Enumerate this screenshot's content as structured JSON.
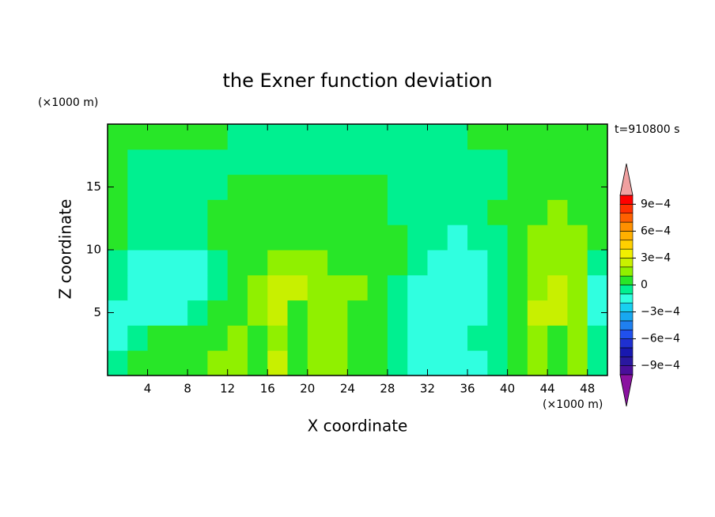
{
  "chart_data": {
    "type": "contour",
    "title": "the Exner function deviation",
    "x_label": "X coordinate",
    "y_label": "Z coordinate",
    "x_unit": "(×1000 m)",
    "y_unit": "(×1000 m)",
    "annotation": "t=910800 s",
    "xlim": [
      0,
      50
    ],
    "ylim": [
      0,
      20
    ],
    "xticks": [
      4,
      8,
      12,
      16,
      20,
      24,
      28,
      32,
      36,
      40,
      44,
      48
    ],
    "yticks": [
      5,
      10,
      15
    ],
    "x": [
      1,
      3,
      5,
      7,
      9,
      11,
      13,
      15,
      17,
      19,
      21,
      23,
      25,
      27,
      29,
      31,
      33,
      35,
      37,
      39,
      41,
      43,
      45,
      47,
      49
    ],
    "y": [
      1,
      3,
      5,
      7,
      9,
      11,
      13,
      15,
      17,
      19
    ],
    "z": [
      [
        -5e-05,
        5e-05,
        5e-05,
        5e-05,
        5e-05,
        0.00015,
        0.00015,
        5e-05,
        0.00025,
        5e-05,
        0.00015,
        0.00015,
        5e-05,
        5e-05,
        -5e-05,
        -0.00015,
        -0.00015,
        -0.00015,
        -0.00015,
        -5e-05,
        5e-05,
        0.00015,
        5e-05,
        0.00015,
        -5e-05
      ],
      [
        -0.00015,
        -5e-05,
        5e-05,
        5e-05,
        5e-05,
        5e-05,
        0.00015,
        5e-05,
        0.00015,
        5e-05,
        0.00015,
        0.00015,
        5e-05,
        5e-05,
        -5e-05,
        -0.00015,
        -0.00015,
        -0.00015,
        -5e-05,
        -5e-05,
        5e-05,
        0.00015,
        5e-05,
        0.00015,
        -5e-05
      ],
      [
        -0.00015,
        -0.00015,
        -0.00015,
        -0.00015,
        -5e-05,
        5e-05,
        5e-05,
        0.00015,
        0.00025,
        5e-05,
        0.00015,
        0.00015,
        5e-05,
        5e-05,
        -5e-05,
        -0.00015,
        -0.00015,
        -0.00015,
        -0.00015,
        -5e-05,
        5e-05,
        0.00025,
        0.00025,
        0.00015,
        -0.00015
      ],
      [
        -5e-05,
        -0.00015,
        -0.00015,
        -0.00015,
        -0.00015,
        -5e-05,
        5e-05,
        0.00015,
        0.00025,
        0.00025,
        0.00015,
        0.00015,
        0.00015,
        5e-05,
        -5e-05,
        -0.00015,
        -0.00015,
        -0.00015,
        -0.00015,
        -5e-05,
        5e-05,
        0.00015,
        0.00025,
        0.00015,
        -0.00015
      ],
      [
        -5e-05,
        -0.00015,
        -0.00015,
        -0.00015,
        -0.00015,
        -5e-05,
        5e-05,
        5e-05,
        0.00015,
        0.00015,
        0.00015,
        5e-05,
        5e-05,
        5e-05,
        5e-05,
        -5e-05,
        -0.00015,
        -0.00015,
        -0.00015,
        -5e-05,
        5e-05,
        0.00015,
        0.00015,
        0.00015,
        -5e-05
      ],
      [
        5e-05,
        -5e-05,
        -5e-05,
        -5e-05,
        -5e-05,
        5e-05,
        5e-05,
        5e-05,
        5e-05,
        5e-05,
        5e-05,
        5e-05,
        5e-05,
        5e-05,
        5e-05,
        -5e-05,
        -5e-05,
        -0.00015,
        -5e-05,
        -5e-05,
        5e-05,
        0.00015,
        0.00015,
        0.00015,
        5e-05
      ],
      [
        5e-05,
        -5e-05,
        -5e-05,
        -5e-05,
        -5e-05,
        5e-05,
        5e-05,
        5e-05,
        5e-05,
        5e-05,
        5e-05,
        5e-05,
        5e-05,
        5e-05,
        -5e-05,
        -5e-05,
        -5e-05,
        -5e-05,
        -5e-05,
        5e-05,
        5e-05,
        5e-05,
        0.00015,
        5e-05,
        5e-05
      ],
      [
        5e-05,
        -5e-05,
        -5e-05,
        -5e-05,
        -5e-05,
        -5e-05,
        5e-05,
        5e-05,
        5e-05,
        5e-05,
        5e-05,
        5e-05,
        5e-05,
        5e-05,
        -5e-05,
        -5e-05,
        -5e-05,
        -5e-05,
        -5e-05,
        -5e-05,
        5e-05,
        5e-05,
        5e-05,
        5e-05,
        5e-05
      ],
      [
        5e-05,
        -5e-05,
        -5e-05,
        -5e-05,
        -5e-05,
        -5e-05,
        -5e-05,
        -5e-05,
        -5e-05,
        -5e-05,
        -5e-05,
        -5e-05,
        -5e-05,
        -5e-05,
        -5e-05,
        -5e-05,
        -5e-05,
        -5e-05,
        -5e-05,
        -5e-05,
        5e-05,
        5e-05,
        5e-05,
        5e-05,
        5e-05
      ],
      [
        5e-05,
        5e-05,
        5e-05,
        5e-05,
        5e-05,
        5e-05,
        -5e-05,
        -5e-05,
        -5e-05,
        -5e-05,
        -5e-05,
        -5e-05,
        -5e-05,
        -5e-05,
        -5e-05,
        -5e-05,
        -5e-05,
        -5e-05,
        5e-05,
        5e-05,
        5e-05,
        5e-05,
        5e-05,
        5e-05,
        5e-05
      ]
    ],
    "levels": [
      -0.001,
      -0.0009,
      -0.0008,
      -0.0007,
      -0.0006,
      -0.0005,
      -0.0004,
      -0.0003,
      -0.0002,
      -0.0001,
      0,
      0.0001,
      0.0002,
      0.0003,
      0.0004,
      0.0005,
      0.0006,
      0.0007,
      0.0008,
      0.0009,
      0.001
    ],
    "colors": [
      "#4a0f9a",
      "#2a18a0",
      "#1818b0",
      "#1f30d0",
      "#2050ee",
      "#1f80f0",
      "#18a8f0",
      "#18d0f0",
      "#30ffe0",
      "#00f090",
      "#28e628",
      "#90f000",
      "#c8f000",
      "#f0f000",
      "#ffd000",
      "#ffb000",
      "#ff9000",
      "#ff6000",
      "#ff3000",
      "#ff0000"
    ],
    "extend_colors": [
      "#8a12a0",
      "#f0a0a0"
    ],
    "colorbar_ticks": [
      {
        "value": -0.0009,
        "label": "−9e−4"
      },
      {
        "value": -0.0006,
        "label": "−6e−4"
      },
      {
        "value": -0.0003,
        "label": "−3e−4"
      },
      0,
      {
        "value": 0.0003,
        "label": "3e−4"
      },
      {
        "value": 0.0006,
        "label": "6e−4"
      },
      {
        "value": 0.0009,
        "label": "9e−4"
      }
    ]
  }
}
